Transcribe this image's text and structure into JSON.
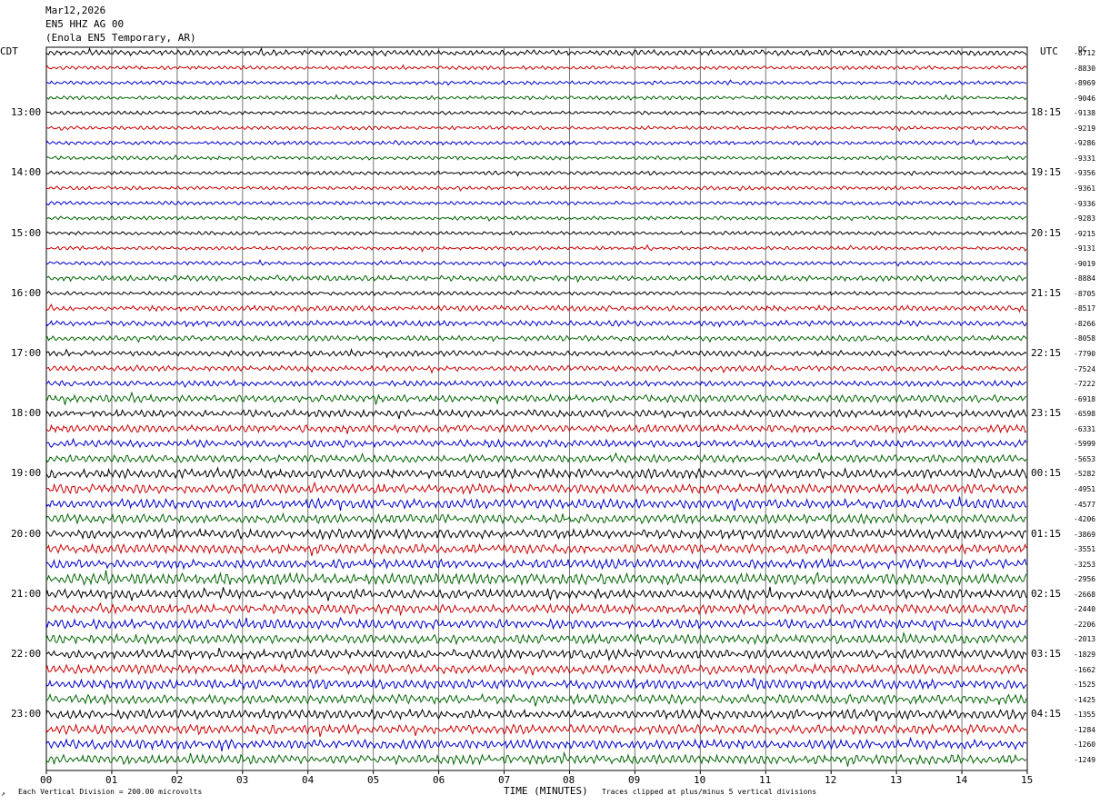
{
  "header": {
    "date": "Mar12,2026",
    "channel": "EN5 HHZ AG 00",
    "station": "(Enola EN5 Temporary, AR)",
    "left_tz": "CDT",
    "right_tz": "UTC",
    "dc_label": "DC"
  },
  "footer": {
    "scale_note": "Each Vertical Division =  200.00 microvolts",
    "xlabel": "TIME (MINUTES)",
    "clip_note": "Traces clipped at plus/minus 5 vertical divisions"
  },
  "chart_data": {
    "type": "line",
    "title": "EN5 HHZ AG 00",
    "xlabel": "TIME (MINUTES)",
    "x_ticks": [
      "00",
      "01",
      "02",
      "03",
      "04",
      "05",
      "06",
      "07",
      "08",
      "09",
      "10",
      "11",
      "12",
      "13",
      "14",
      "15"
    ],
    "xlim": [
      0,
      15
    ],
    "grid": true,
    "trace_colors": [
      "#000000",
      "#cc0000",
      "#0000cc",
      "#006600"
    ],
    "left_hour_labels": [
      "13:00",
      "14:00",
      "15:00",
      "16:00",
      "17:00",
      "18:00",
      "19:00",
      "20:00",
      "21:00",
      "22:00",
      "23:00"
    ],
    "right_hour_labels": [
      "18:15",
      "19:15",
      "20:15",
      "21:15",
      "22:15",
      "23:15",
      "00:15",
      "01:15",
      "02:15",
      "03:15",
      "04:15"
    ],
    "dc_offsets": [
      "-8712",
      "-8830",
      "-8969",
      "-9046",
      "-9138",
      "-9219",
      "-9286",
      "-9331",
      "-9356",
      "-9361",
      "-9336",
      "-9283",
      "-9215",
      "-9131",
      "-9019",
      "-8884",
      "-8705",
      "-8517",
      "-8266",
      "-8058",
      "-7790",
      "-7524",
      "-7222",
      "-6918",
      "-6598",
      "-6331",
      "-5999",
      "-5653",
      "-5282",
      "-4951",
      "-4577",
      "-4206",
      "-3869",
      "-3551",
      "-3253",
      "-2956",
      "-2668",
      "-2440",
      "-2206",
      "-2013",
      "-1829",
      "-1662",
      "-1525",
      "-1425",
      "-1355",
      "-1284",
      "-1260",
      "-1249"
    ],
    "trace_amplitude_px": [
      3,
      2,
      2,
      2,
      2,
      2,
      2,
      2,
      2,
      2,
      2,
      2,
      2,
      2,
      2,
      3,
      2,
      3,
      3,
      3,
      3,
      3,
      3,
      4,
      4,
      4,
      4,
      4,
      5,
      5,
      5,
      5,
      5,
      5,
      5,
      6,
      5,
      5,
      5,
      5,
      5,
      5,
      5,
      5,
      5,
      5,
      5,
      5
    ]
  }
}
